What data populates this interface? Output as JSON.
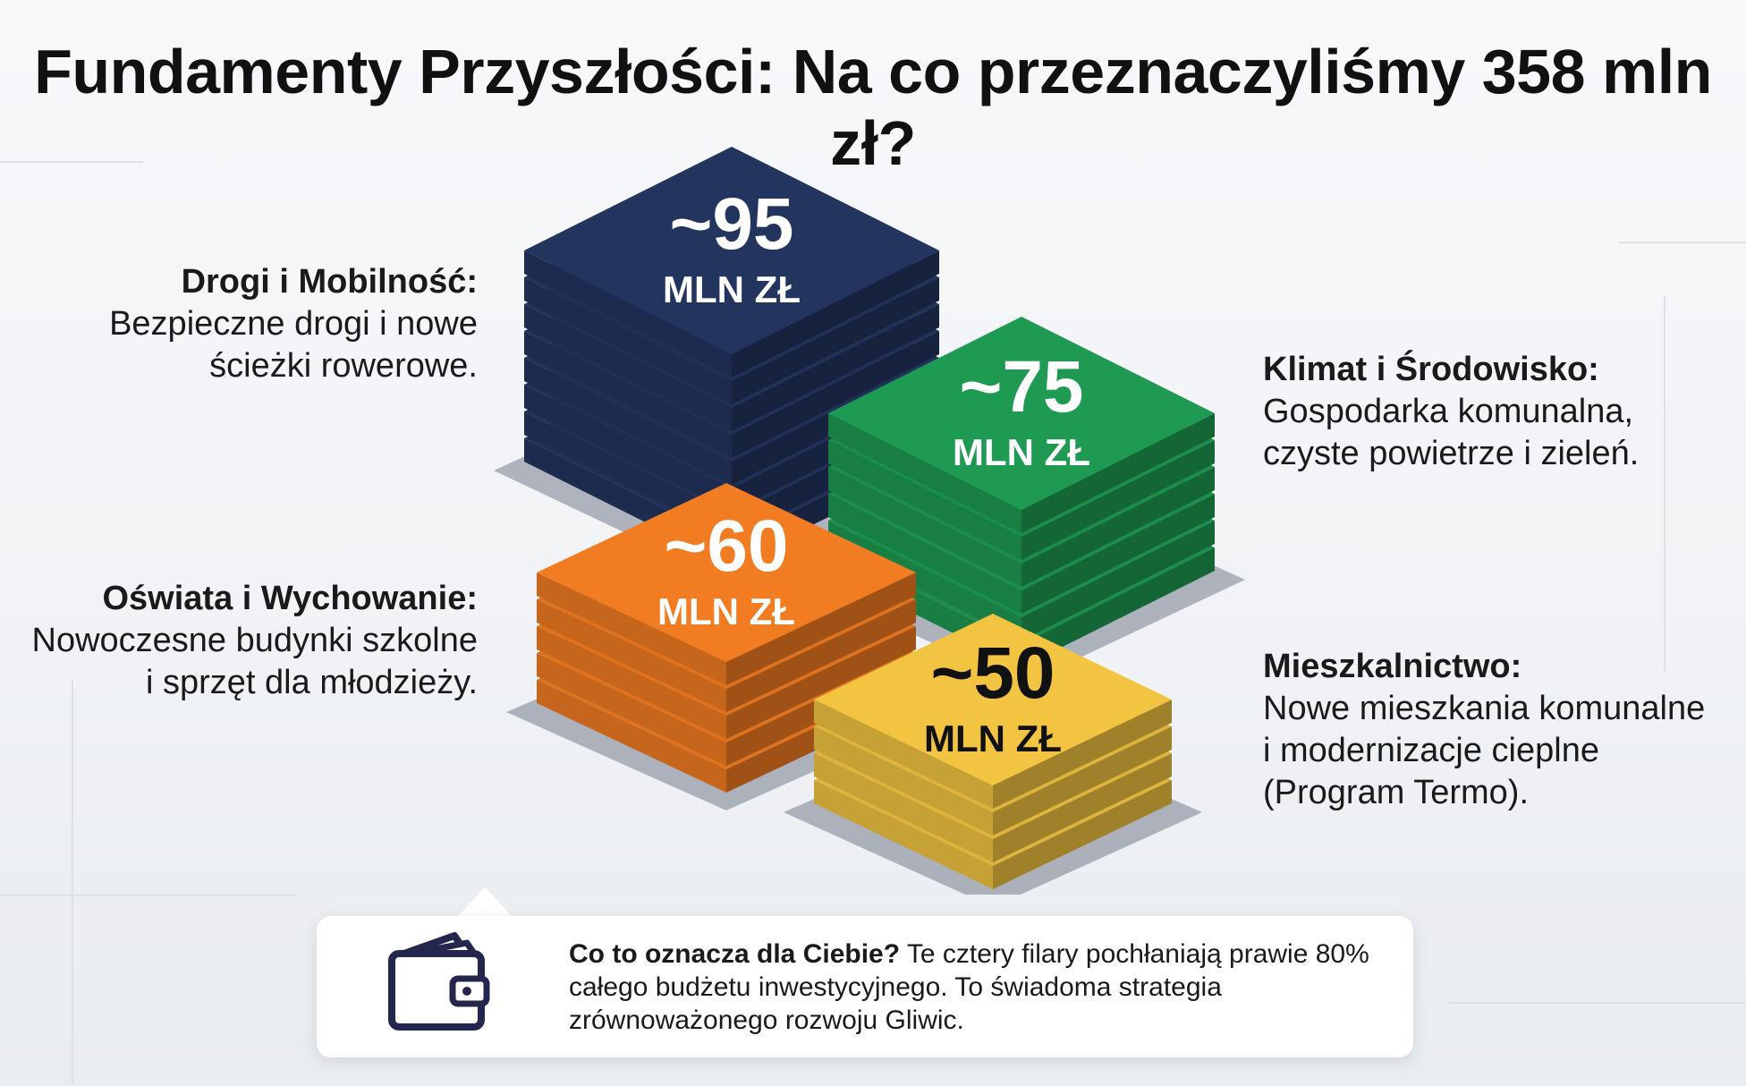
{
  "title": "Fundamenty Przyszłości: Na co przeznaczyliśmy 358 mln zł?",
  "chart_data": {
    "type": "bar",
    "style": "isometric stacked blocks",
    "unit": "MLN ZŁ",
    "categories": [
      "Drogi i Mobilność:",
      "Klimat i Środowisko:",
      "Oświata i Wychowanie:",
      "Mieszkalnictwo:"
    ],
    "values": [
      95,
      75,
      60,
      50
    ],
    "value_labels": [
      "~95",
      "~75",
      "~60",
      "~50"
    ],
    "colors": [
      "#23345f",
      "#1e9a52",
      "#f27c22",
      "#f2c441"
    ],
    "label_colors": [
      "#ffffff",
      "#ffffff",
      "#ffffff",
      "#111111"
    ]
  },
  "labels": [
    {
      "heading": "Drogi i Mobilność:",
      "lines": [
        "Bezpieczne drogi i nowe",
        "ścieżki rowerowe."
      ]
    },
    {
      "heading": "Klimat i Środowisko:",
      "lines": [
        "Gospodarka komunalna,",
        "czyste powietrze i zieleń."
      ]
    },
    {
      "heading": "Oświata i Wychowanie:",
      "lines": [
        "Nowoczesne budynki szkolne",
        "i sprzęt dla młodzieży."
      ]
    },
    {
      "heading": "Mieszkalnictwo:",
      "lines": [
        "Nowe mieszkania komunalne",
        "i modernizacje cieplne",
        "(Program Termo)."
      ]
    }
  ],
  "callout": {
    "icon": "wallet-icon",
    "bold": "Co to oznacza dla Ciebie?",
    "text": " Te cztery filary pochłaniają prawie 80% całego budżetu inwestycyjnego. To świadoma strategia zrównoważonego rozwoju Gliwic."
  }
}
